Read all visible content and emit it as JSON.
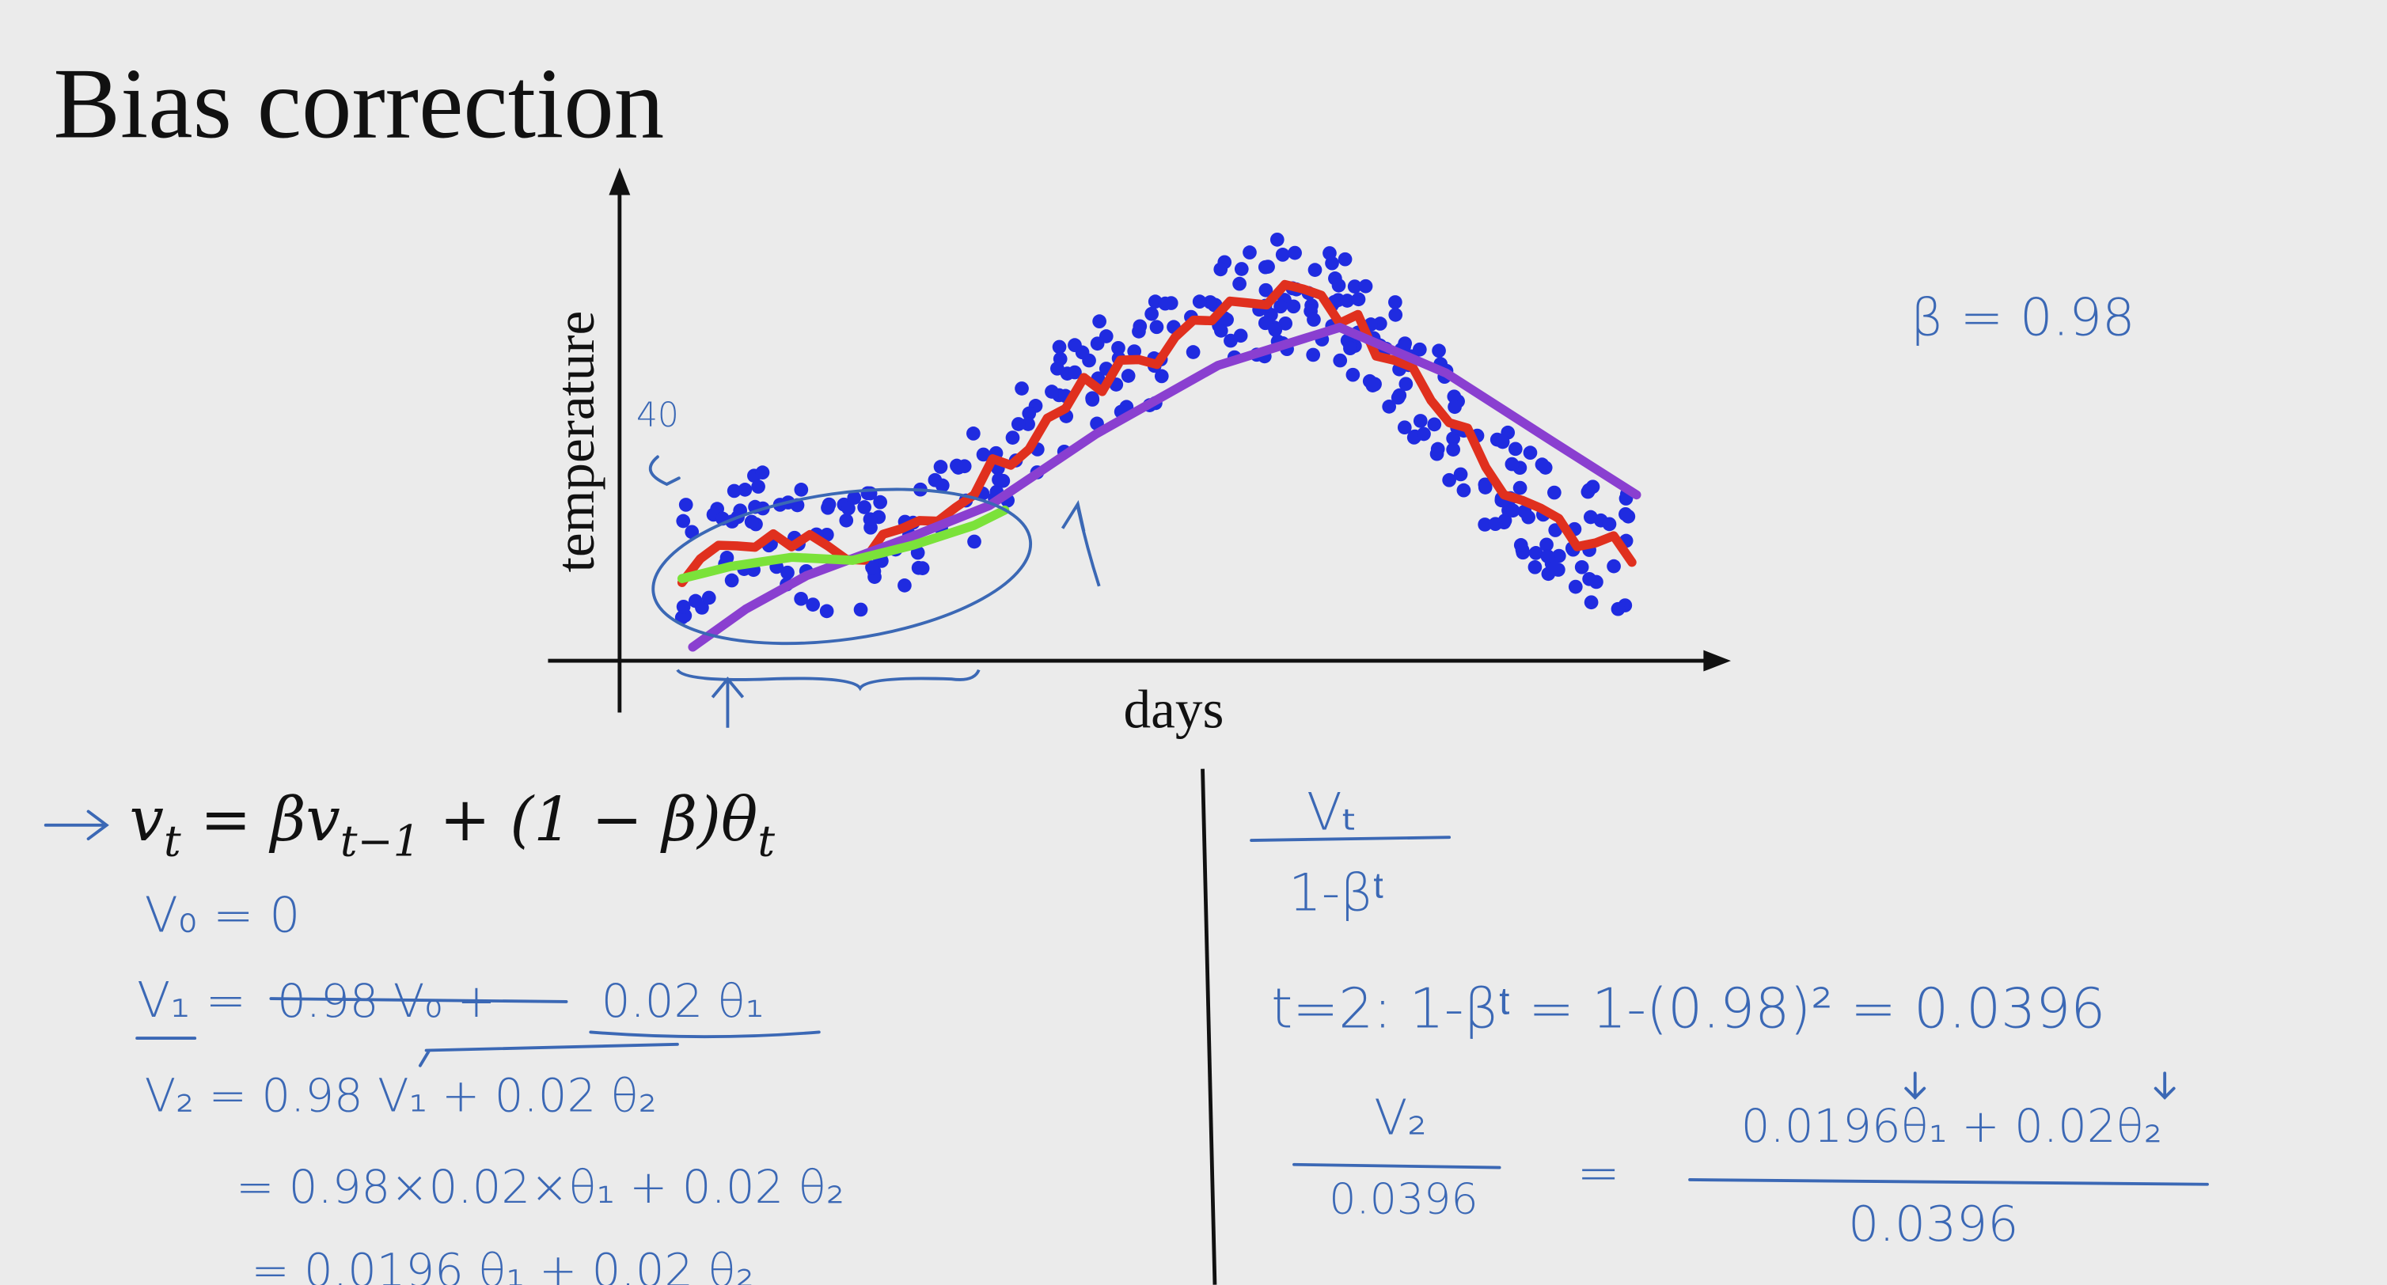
{
  "title": "Bias correction",
  "plot": {
    "y_label": "temperature",
    "x_label": "days",
    "note": "40"
  },
  "beta_note": "β = 0.98",
  "equation": [
    "v",
    "t",
    " = βv",
    "t−1",
    " + (1 − β)θ",
    "t"
  ],
  "v0": "V₀ = 0",
  "v1": {
    "lhs": "V₁ =",
    "struck": "0.98 V₀ +",
    "rest": "0.02 θ₁"
  },
  "v2": "V₂ = 0.98 V₁ + 0.02 θ₂",
  "expand": [
    "= 0.98×0.02×θ₁ + 0.02 θ₂",
    "= 0.0196 θ₁ + 0.02 θ₂"
  ],
  "correction": {
    "numerator": "Vₜ",
    "denominator": "1-βᵗ"
  },
  "t2": "t=2:   1-βᵗ  =  1-(0.98)²  =  0.0396",
  "v2_corrected": {
    "numerator": "V₂",
    "denominator": "0.0396",
    "equals": "=",
    "rhs_numerator": "0.0196θ₁ + 0.02θ₂",
    "rhs_denominator": "0.0396"
  }
}
